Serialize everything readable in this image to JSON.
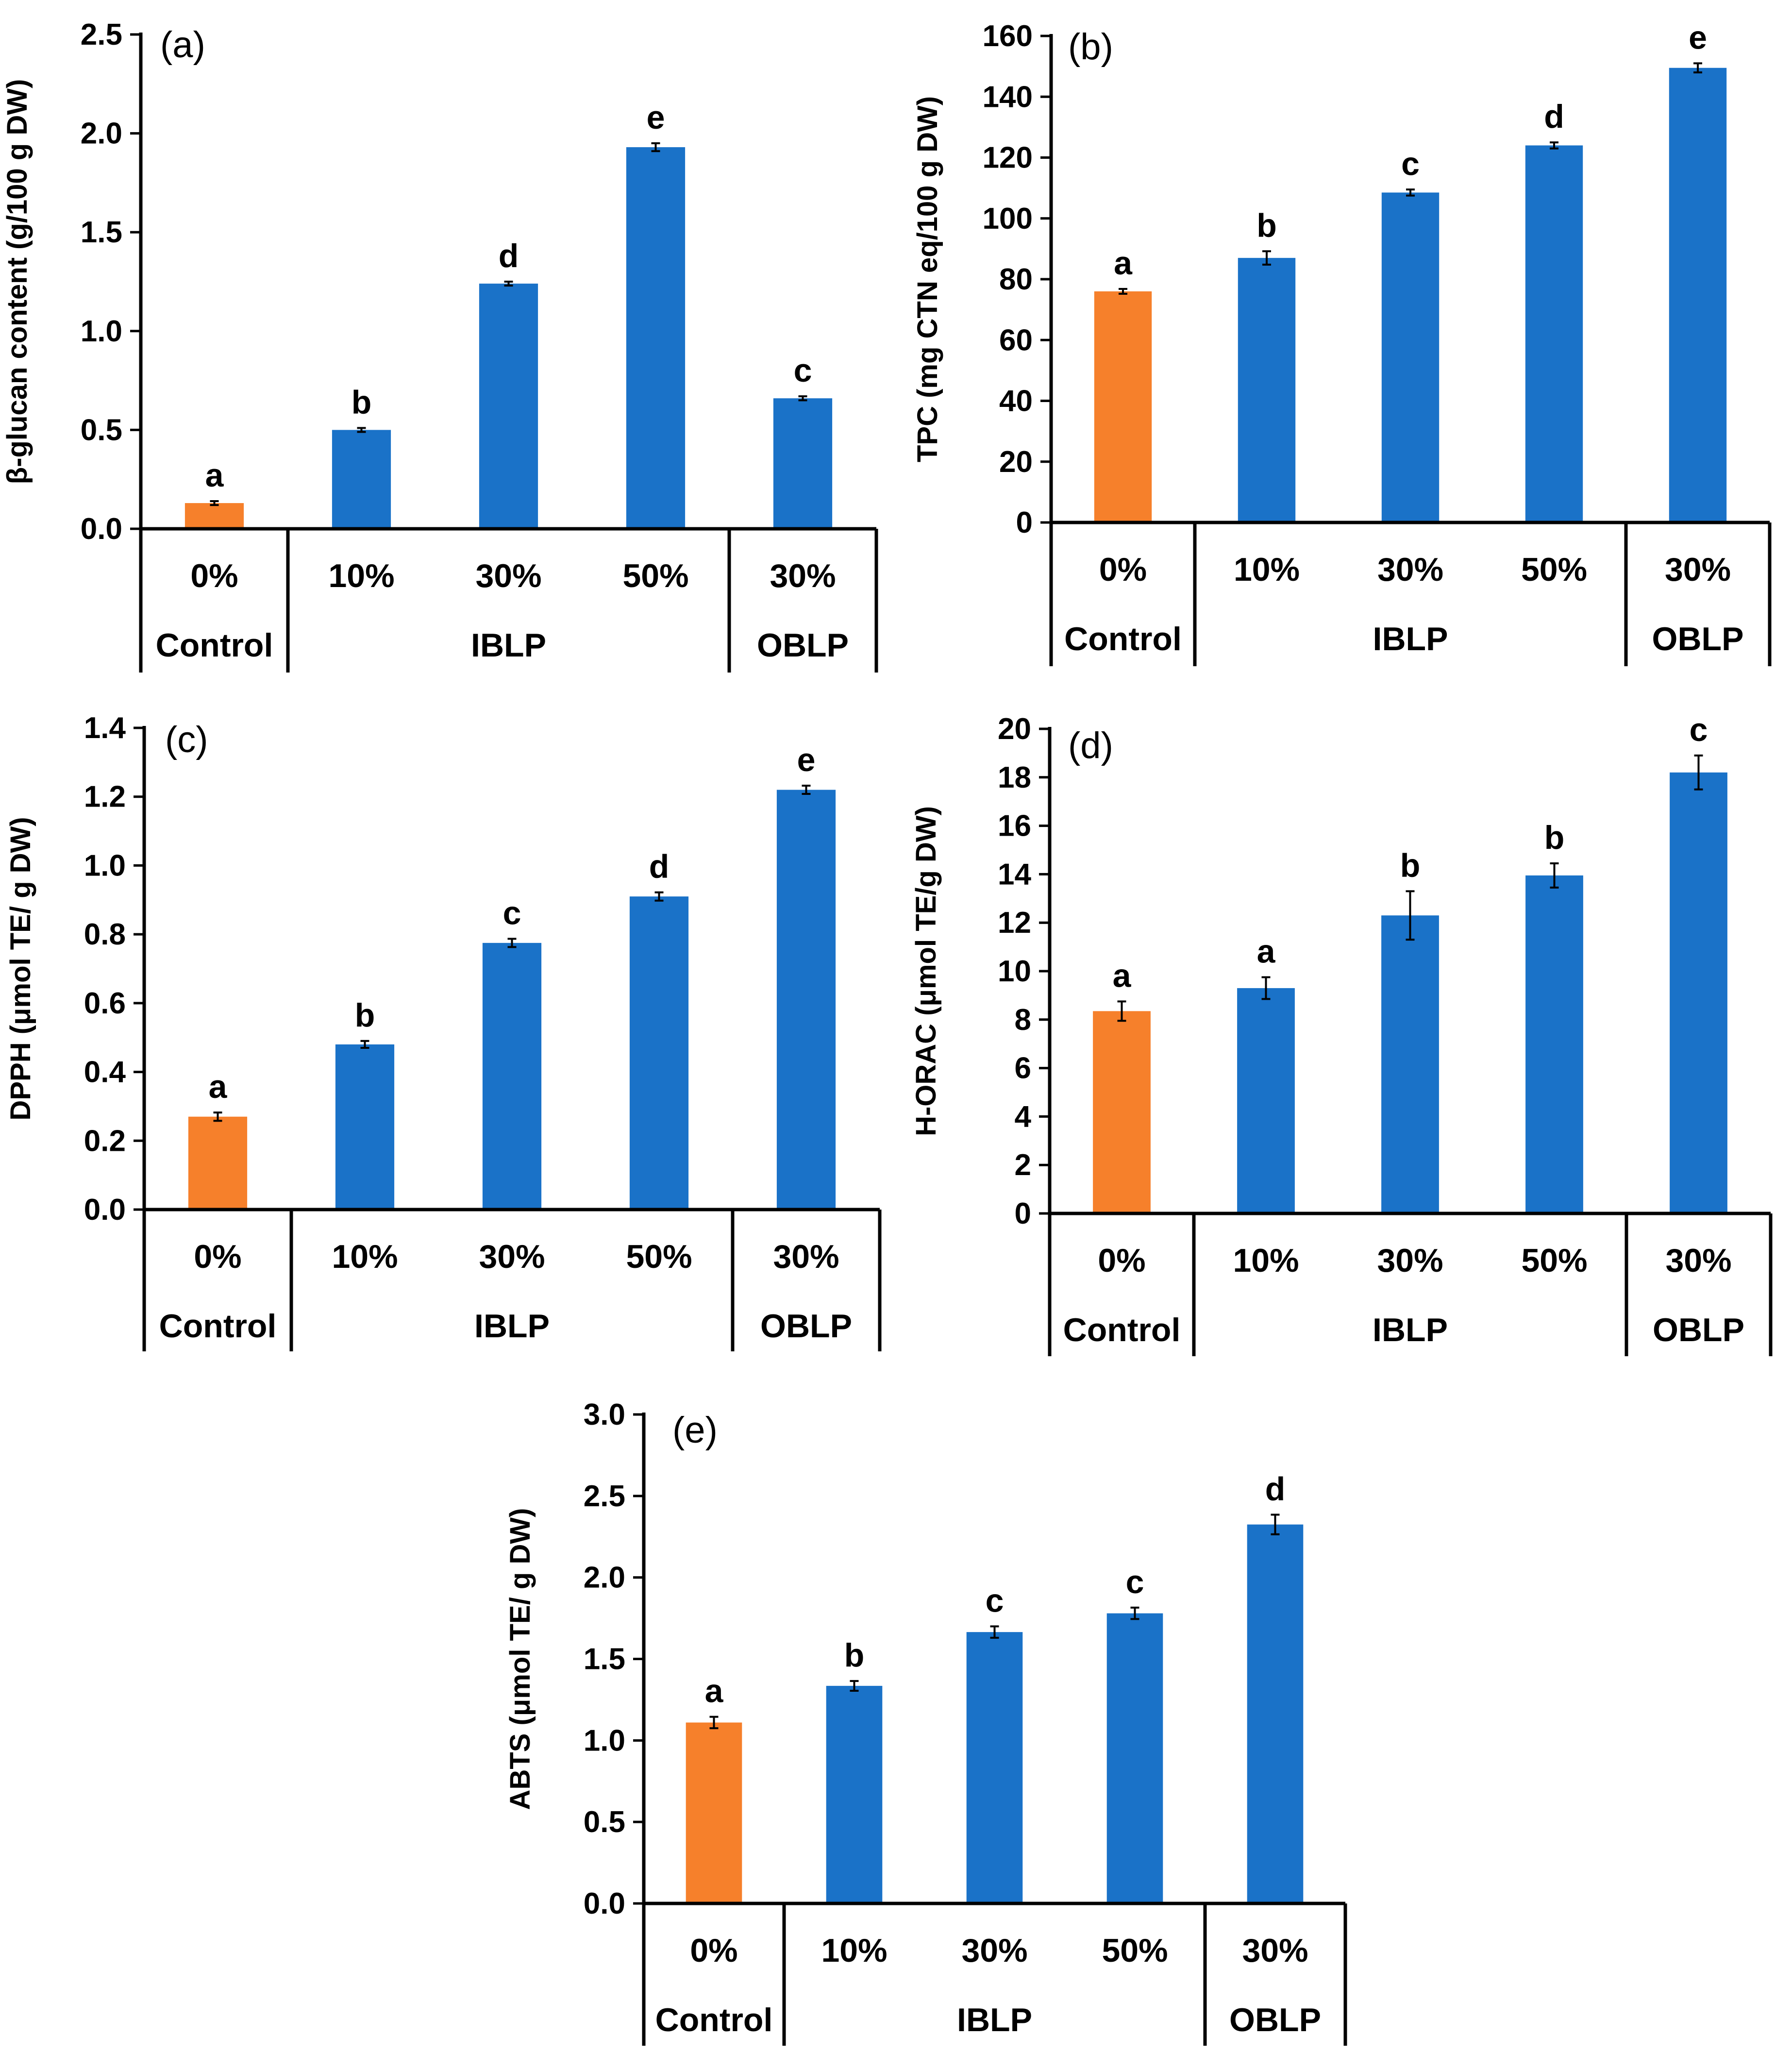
{
  "colors": {
    "control": "#F6802B",
    "treatment": "#1A72C8",
    "axis": "#000000"
  },
  "chart_data": [
    {
      "type": "bar",
      "panel": "(a)",
      "ylabel": "β-glucan content (g/100 g DW)",
      "ylim": [
        0,
        2.5
      ],
      "yticks": [
        "0.0",
        "0.5",
        "1.0",
        "1.5",
        "2.0",
        "2.5"
      ],
      "categories": [
        "0%",
        "10%",
        "30%",
        "50%",
        "30%"
      ],
      "groups": [
        {
          "label": "Control",
          "span": 1
        },
        {
          "label": "IBLP",
          "span": 3
        },
        {
          "label": "OBLP",
          "span": 1
        }
      ],
      "values": [
        0.13,
        0.5,
        1.24,
        1.93,
        0.66
      ],
      "errors": [
        0.01,
        0.01,
        0.01,
        0.02,
        0.01
      ],
      "letters": [
        "a",
        "b",
        "d",
        "e",
        "c"
      ]
    },
    {
      "type": "bar",
      "panel": "(b)",
      "ylabel": "TPC (mg CTN eq/100 g DW)",
      "ylim": [
        0,
        160
      ],
      "yticks": [
        "0",
        "20",
        "40",
        "60",
        "80",
        "100",
        "120",
        "140",
        "160"
      ],
      "categories": [
        "0%",
        "10%",
        "30%",
        "50%",
        "30%"
      ],
      "groups": [
        {
          "label": "Control",
          "span": 1
        },
        {
          "label": "IBLP",
          "span": 3
        },
        {
          "label": "OBLP",
          "span": 1
        }
      ],
      "values": [
        76,
        87,
        108.5,
        124,
        149.5
      ],
      "errors": [
        0.8,
        2.2,
        1.0,
        1.0,
        1.5
      ],
      "letters": [
        "a",
        "b",
        "c",
        "d",
        "e"
      ]
    },
    {
      "type": "bar",
      "panel": "(c)",
      "ylabel": "DPPH (μmol TE/ g DW)",
      "ylim": [
        0,
        1.4
      ],
      "yticks": [
        "0.0",
        "0.2",
        "0.4",
        "0.6",
        "0.8",
        "1.0",
        "1.2",
        "1.4"
      ],
      "categories": [
        "0%",
        "10%",
        "30%",
        "50%",
        "30%"
      ],
      "groups": [
        {
          "label": "Control",
          "span": 1
        },
        {
          "label": "IBLP",
          "span": 3
        },
        {
          "label": "OBLP",
          "span": 1
        }
      ],
      "values": [
        0.27,
        0.48,
        0.775,
        0.91,
        1.22
      ],
      "errors": [
        0.012,
        0.01,
        0.012,
        0.012,
        0.012
      ],
      "letters": [
        "a",
        "b",
        "c",
        "d",
        "e"
      ]
    },
    {
      "type": "bar",
      "panel": "(d)",
      "ylabel": "H-ORAC (μmol TE/g DW)",
      "ylim": [
        0,
        20
      ],
      "yticks": [
        "0",
        "2",
        "4",
        "6",
        "8",
        "10",
        "12",
        "14",
        "16",
        "18",
        "20"
      ],
      "categories": [
        "0%",
        "10%",
        "30%",
        "50%",
        "30%"
      ],
      "groups": [
        {
          "label": "Control",
          "span": 1
        },
        {
          "label": "IBLP",
          "span": 3
        },
        {
          "label": "OBLP",
          "span": 1
        }
      ],
      "values": [
        8.35,
        9.3,
        12.3,
        13.95,
        18.2
      ],
      "errors": [
        0.4,
        0.45,
        1.0,
        0.5,
        0.7
      ],
      "letters": [
        "a",
        "a",
        "b",
        "b",
        "c"
      ]
    },
    {
      "type": "bar",
      "panel": "(e)",
      "ylabel": "ABTS (μmol TE/ g DW)",
      "ylim": [
        0,
        3.0
      ],
      "yticks": [
        "0.0",
        "0.5",
        "1.0",
        "1.5",
        "2.0",
        "2.5",
        "3.0"
      ],
      "categories": [
        "0%",
        "10%",
        "30%",
        "50%",
        "30%"
      ],
      "groups": [
        {
          "label": "Control",
          "span": 1
        },
        {
          "label": "IBLP",
          "span": 3
        },
        {
          "label": "OBLP",
          "span": 1
        }
      ],
      "values": [
        1.11,
        1.335,
        1.665,
        1.78,
        2.325
      ],
      "errors": [
        0.035,
        0.03,
        0.035,
        0.035,
        0.06
      ],
      "letters": [
        "a",
        "b",
        "c",
        "c",
        "d"
      ]
    }
  ]
}
